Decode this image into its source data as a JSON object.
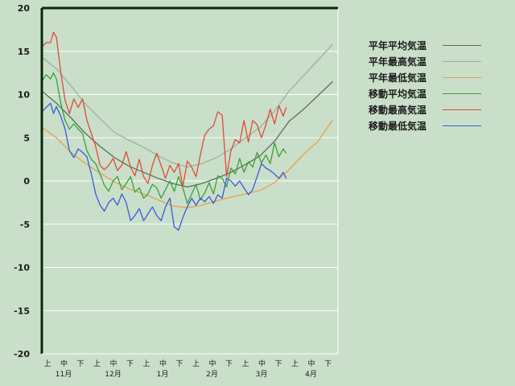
{
  "chart_data": {
    "type": "line",
    "y_ticks": [
      "20",
      "15",
      "10",
      "5",
      "0",
      "-5",
      "-10",
      "-15",
      "-20"
    ],
    "ylim": [
      -20,
      20
    ],
    "x_dekad_labels": [
      "上",
      "中",
      "下",
      "上",
      "中",
      "下",
      "上",
      "中",
      "下",
      "上",
      "中",
      "下",
      "上",
      "中",
      "下",
      "上",
      "中",
      "下"
    ],
    "x_month_labels": [
      "11月",
      "12月",
      "1月",
      "2月",
      "3月",
      "4月"
    ],
    "x_range_days": [
      0,
      180
    ],
    "grid": true,
    "legend_position": "right",
    "series": [
      {
        "name": "平年平均気温",
        "color": "#5a6e5a",
        "points": [
          [
            0,
            10.4
          ],
          [
            10,
            9.0
          ],
          [
            20,
            7.3
          ],
          [
            30,
            5.5
          ],
          [
            40,
            4.0
          ],
          [
            50,
            2.7
          ],
          [
            60,
            1.7
          ],
          [
            70,
            1.0
          ],
          [
            80,
            0.3
          ],
          [
            90,
            -0.3
          ],
          [
            100,
            -0.7
          ],
          [
            110,
            -0.3
          ],
          [
            120,
            0.3
          ],
          [
            130,
            1.0
          ],
          [
            140,
            1.9
          ],
          [
            150,
            2.9
          ],
          [
            160,
            4.6
          ],
          [
            170,
            6.9
          ],
          [
            180,
            8.3
          ],
          [
            190,
            9.9
          ],
          [
            200,
            11.5
          ]
        ]
      },
      {
        "name": "平年最高気温",
        "color": "#a0b0a0",
        "points": [
          [
            0,
            14.3
          ],
          [
            10,
            13.0
          ],
          [
            20,
            11.0
          ],
          [
            30,
            8.9
          ],
          [
            40,
            7.2
          ],
          [
            50,
            5.6
          ],
          [
            60,
            4.7
          ],
          [
            70,
            3.9
          ],
          [
            80,
            2.9
          ],
          [
            90,
            2.1
          ],
          [
            100,
            1.6
          ],
          [
            110,
            2.0
          ],
          [
            120,
            2.7
          ],
          [
            130,
            3.7
          ],
          [
            140,
            5.0
          ],
          [
            150,
            6.2
          ],
          [
            160,
            8.1
          ],
          [
            170,
            10.4
          ],
          [
            180,
            12.2
          ],
          [
            190,
            14.0
          ],
          [
            200,
            15.8
          ]
        ]
      },
      {
        "name": "平年最低気温",
        "color": "#e8a050",
        "points": [
          [
            0,
            6.2
          ],
          [
            10,
            5.0
          ],
          [
            20,
            3.3
          ],
          [
            30,
            2.0
          ],
          [
            40,
            0.9
          ],
          [
            50,
            -0.1
          ],
          [
            60,
            -0.9
          ],
          [
            70,
            -1.5
          ],
          [
            80,
            -2.2
          ],
          [
            90,
            -2.9
          ],
          [
            100,
            -3.1
          ],
          [
            110,
            -2.8
          ],
          [
            120,
            -2.3
          ],
          [
            130,
            -1.9
          ],
          [
            140,
            -1.5
          ],
          [
            150,
            -1.1
          ],
          [
            160,
            -0.2
          ],
          [
            170,
            1.3
          ],
          [
            180,
            3.1
          ],
          [
            190,
            4.6
          ],
          [
            200,
            7.1
          ]
        ]
      },
      {
        "name": "移動平均気温",
        "color": "#3aa03a",
        "points": [
          [
            0,
            11.5
          ],
          [
            3,
            12.3
          ],
          [
            6,
            11.8
          ],
          [
            8,
            12.5
          ],
          [
            10,
            11.8
          ],
          [
            13,
            9.0
          ],
          [
            16,
            7.0
          ],
          [
            19,
            6.0
          ],
          [
            22,
            6.6
          ],
          [
            25,
            6.0
          ],
          [
            28,
            5.5
          ],
          [
            31,
            3.5
          ],
          [
            34,
            2.5
          ],
          [
            37,
            2.0
          ],
          [
            40,
            0.8
          ],
          [
            43,
            -0.5
          ],
          [
            46,
            -1.2
          ],
          [
            49,
            0.0
          ],
          [
            52,
            0.5
          ],
          [
            55,
            -1.0
          ],
          [
            58,
            -0.3
          ],
          [
            61,
            0.5
          ],
          [
            64,
            -1.3
          ],
          [
            67,
            -0.8
          ],
          [
            70,
            -2.0
          ],
          [
            73,
            -1.5
          ],
          [
            76,
            -0.4
          ],
          [
            79,
            -0.8
          ],
          [
            82,
            -2.0
          ],
          [
            85,
            -1.0
          ],
          [
            88,
            0.0
          ],
          [
            91,
            -1.2
          ],
          [
            94,
            0.5
          ],
          [
            97,
            -0.8
          ],
          [
            100,
            -2.6
          ],
          [
            103,
            -1.5
          ],
          [
            106,
            -0.4
          ],
          [
            109,
            -2.2
          ],
          [
            112,
            -1.4
          ],
          [
            115,
            -0.2
          ],
          [
            118,
            -1.5
          ],
          [
            121,
            0.6
          ],
          [
            124,
            0.3
          ],
          [
            127,
            -0.7
          ],
          [
            130,
            1.5
          ],
          [
            133,
            0.8
          ],
          [
            136,
            2.6
          ],
          [
            139,
            1.0
          ],
          [
            142,
            2.2
          ],
          [
            145,
            1.6
          ],
          [
            148,
            3.3
          ],
          [
            151,
            2.1
          ],
          [
            154,
            3.0
          ],
          [
            157,
            2.0
          ],
          [
            160,
            4.4
          ],
          [
            163,
            2.8
          ],
          [
            166,
            3.7
          ],
          [
            168,
            3.2
          ]
        ]
      },
      {
        "name": "移動最高気温",
        "color": "#e04a3a",
        "points": [
          [
            0,
            15.5
          ],
          [
            3,
            16.0
          ],
          [
            6,
            16.0
          ],
          [
            8,
            17.2
          ],
          [
            10,
            16.6
          ],
          [
            13,
            12.6
          ],
          [
            16,
            9.3
          ],
          [
            19,
            7.8
          ],
          [
            22,
            9.5
          ],
          [
            25,
            8.5
          ],
          [
            28,
            9.5
          ],
          [
            31,
            7.0
          ],
          [
            34,
            5.5
          ],
          [
            37,
            4.0
          ],
          [
            40,
            1.8
          ],
          [
            43,
            1.3
          ],
          [
            46,
            1.8
          ],
          [
            49,
            2.6
          ],
          [
            52,
            1.2
          ],
          [
            55,
            1.8
          ],
          [
            58,
            3.4
          ],
          [
            61,
            1.6
          ],
          [
            64,
            0.6
          ],
          [
            67,
            2.5
          ],
          [
            70,
            0.5
          ],
          [
            73,
            -0.3
          ],
          [
            76,
            1.8
          ],
          [
            79,
            3.2
          ],
          [
            82,
            1.8
          ],
          [
            85,
            0.3
          ],
          [
            88,
            1.8
          ],
          [
            91,
            1.0
          ],
          [
            94,
            2.0
          ],
          [
            97,
            -0.6
          ],
          [
            100,
            2.3
          ],
          [
            103,
            1.6
          ],
          [
            106,
            0.5
          ],
          [
            109,
            3.0
          ],
          [
            112,
            5.3
          ],
          [
            115,
            6.0
          ],
          [
            118,
            6.4
          ],
          [
            121,
            8.0
          ],
          [
            124,
            7.6
          ],
          [
            127,
            0.5
          ],
          [
            130,
            3.5
          ],
          [
            133,
            4.8
          ],
          [
            136,
            4.4
          ],
          [
            139,
            7.0
          ],
          [
            142,
            4.5
          ],
          [
            145,
            7.0
          ],
          [
            148,
            6.5
          ],
          [
            151,
            5.0
          ],
          [
            154,
            6.5
          ],
          [
            157,
            8.3
          ],
          [
            160,
            6.6
          ],
          [
            163,
            8.7
          ],
          [
            166,
            7.5
          ],
          [
            168,
            8.5
          ]
        ]
      },
      {
        "name": "移動最低気温",
        "color": "#3a5ae0",
        "points": [
          [
            0,
            8.0
          ],
          [
            3,
            8.5
          ],
          [
            6,
            9.0
          ],
          [
            8,
            7.8
          ],
          [
            10,
            8.6
          ],
          [
            13,
            7.5
          ],
          [
            16,
            6.0
          ],
          [
            19,
            3.5
          ],
          [
            22,
            2.7
          ],
          [
            25,
            3.7
          ],
          [
            28,
            3.3
          ],
          [
            31,
            2.8
          ],
          [
            34,
            0.8
          ],
          [
            37,
            -1.5
          ],
          [
            40,
            -2.8
          ],
          [
            43,
            -3.5
          ],
          [
            46,
            -2.5
          ],
          [
            49,
            -2.0
          ],
          [
            52,
            -2.8
          ],
          [
            55,
            -1.5
          ],
          [
            58,
            -2.5
          ],
          [
            61,
            -4.6
          ],
          [
            64,
            -4.0
          ],
          [
            67,
            -3.2
          ],
          [
            70,
            -4.6
          ],
          [
            73,
            -3.8
          ],
          [
            76,
            -3.0
          ],
          [
            79,
            -4.0
          ],
          [
            82,
            -4.6
          ],
          [
            85,
            -3.0
          ],
          [
            88,
            -2.0
          ],
          [
            91,
            -5.3
          ],
          [
            94,
            -5.7
          ],
          [
            97,
            -4.2
          ],
          [
            100,
            -3.0
          ],
          [
            103,
            -2.0
          ],
          [
            106,
            -2.8
          ],
          [
            109,
            -2.0
          ],
          [
            112,
            -2.4
          ],
          [
            115,
            -1.8
          ],
          [
            118,
            -2.6
          ],
          [
            121,
            -1.6
          ],
          [
            124,
            -2.0
          ],
          [
            127,
            0.3
          ],
          [
            130,
            0.0
          ],
          [
            133,
            -0.6
          ],
          [
            136,
            0.0
          ],
          [
            139,
            -0.8
          ],
          [
            142,
            -1.6
          ],
          [
            145,
            -1.0
          ],
          [
            148,
            0.5
          ],
          [
            151,
            2.0
          ],
          [
            154,
            1.5
          ],
          [
            157,
            1.2
          ],
          [
            160,
            0.8
          ],
          [
            163,
            0.3
          ],
          [
            166,
            1.0
          ],
          [
            168,
            0.3
          ]
        ]
      }
    ]
  }
}
